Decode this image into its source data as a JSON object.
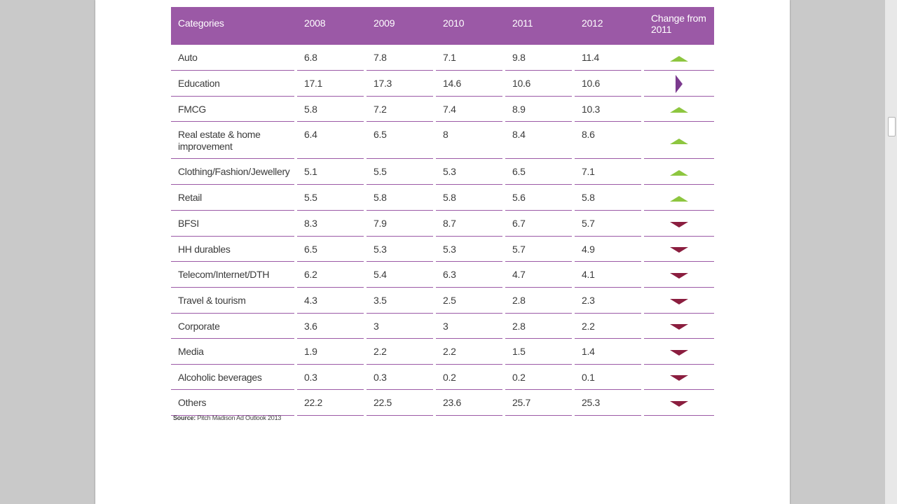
{
  "table": {
    "headers": [
      "Categories",
      "2008",
      "2009",
      "2010",
      "2011",
      "2012",
      "Change from 2011"
    ],
    "rows": [
      {
        "category": "Auto",
        "values": [
          "6.8",
          "7.8",
          "7.1",
          "9.8",
          "11.4"
        ],
        "change": "up"
      },
      {
        "category": "Education",
        "values": [
          "17.1",
          "17.3",
          "14.6",
          "10.6",
          "10.6"
        ],
        "change": "flat"
      },
      {
        "category": "FMCG",
        "values": [
          "5.8",
          "7.2",
          "7.4",
          "8.9",
          "10.3"
        ],
        "change": "up"
      },
      {
        "category": "Real estate & home improvement",
        "values": [
          "6.4",
          "6.5",
          "8",
          "8.4",
          "8.6"
        ],
        "change": "up"
      },
      {
        "category": "Clothing/Fashion/Jewellery",
        "values": [
          "5.1",
          "5.5",
          "5.3",
          "6.5",
          "7.1"
        ],
        "change": "up"
      },
      {
        "category": "Retail",
        "values": [
          "5.5",
          "5.8",
          "5.8",
          "5.6",
          "5.8"
        ],
        "change": "up"
      },
      {
        "category": "BFSI",
        "values": [
          "8.3",
          "7.9",
          "8.7",
          "6.7",
          "5.7"
        ],
        "change": "down"
      },
      {
        "category": "HH durables",
        "values": [
          "6.5",
          "5.3",
          "5.3",
          "5.7",
          "4.9"
        ],
        "change": "down"
      },
      {
        "category": "Telecom/Internet/DTH",
        "values": [
          "6.2",
          "5.4",
          "6.3",
          "4.7",
          "4.1"
        ],
        "change": "down"
      },
      {
        "category": "Travel & tourism",
        "values": [
          "4.3",
          "3.5",
          "2.5",
          "2.8",
          "2.3"
        ],
        "change": "down"
      },
      {
        "category": "Corporate",
        "values": [
          "3.6",
          "3",
          "3",
          "2.8",
          "2.2"
        ],
        "change": "down"
      },
      {
        "category": "Media",
        "values": [
          "1.9",
          "2.2",
          "2.2",
          "1.5",
          "1.4"
        ],
        "change": "down"
      },
      {
        "category": "Alcoholic beverages",
        "values": [
          "0.3",
          "0.3",
          "0.2",
          "0.2",
          "0.1"
        ],
        "change": "down"
      },
      {
        "category": "Others",
        "values": [
          "22.2",
          "22.5",
          "23.6",
          "25.7",
          "25.3"
        ],
        "change": "down"
      }
    ]
  },
  "change_icons": {
    "up": {
      "icon": "triangle-up-icon",
      "color": "#8dc63f"
    },
    "down": {
      "icon": "triangle-down-icon",
      "color": "#8b1e3f"
    },
    "flat": {
      "icon": "triangle-right-icon",
      "color": "#7b3a8e"
    }
  },
  "source": {
    "label": "Source:",
    "text": "Pitch Madison Ad Outlook 2013"
  },
  "colors": {
    "header_bg": "#9b59a6",
    "row_rule": "#9b59a6",
    "page_bg": "#c9c9c9"
  }
}
